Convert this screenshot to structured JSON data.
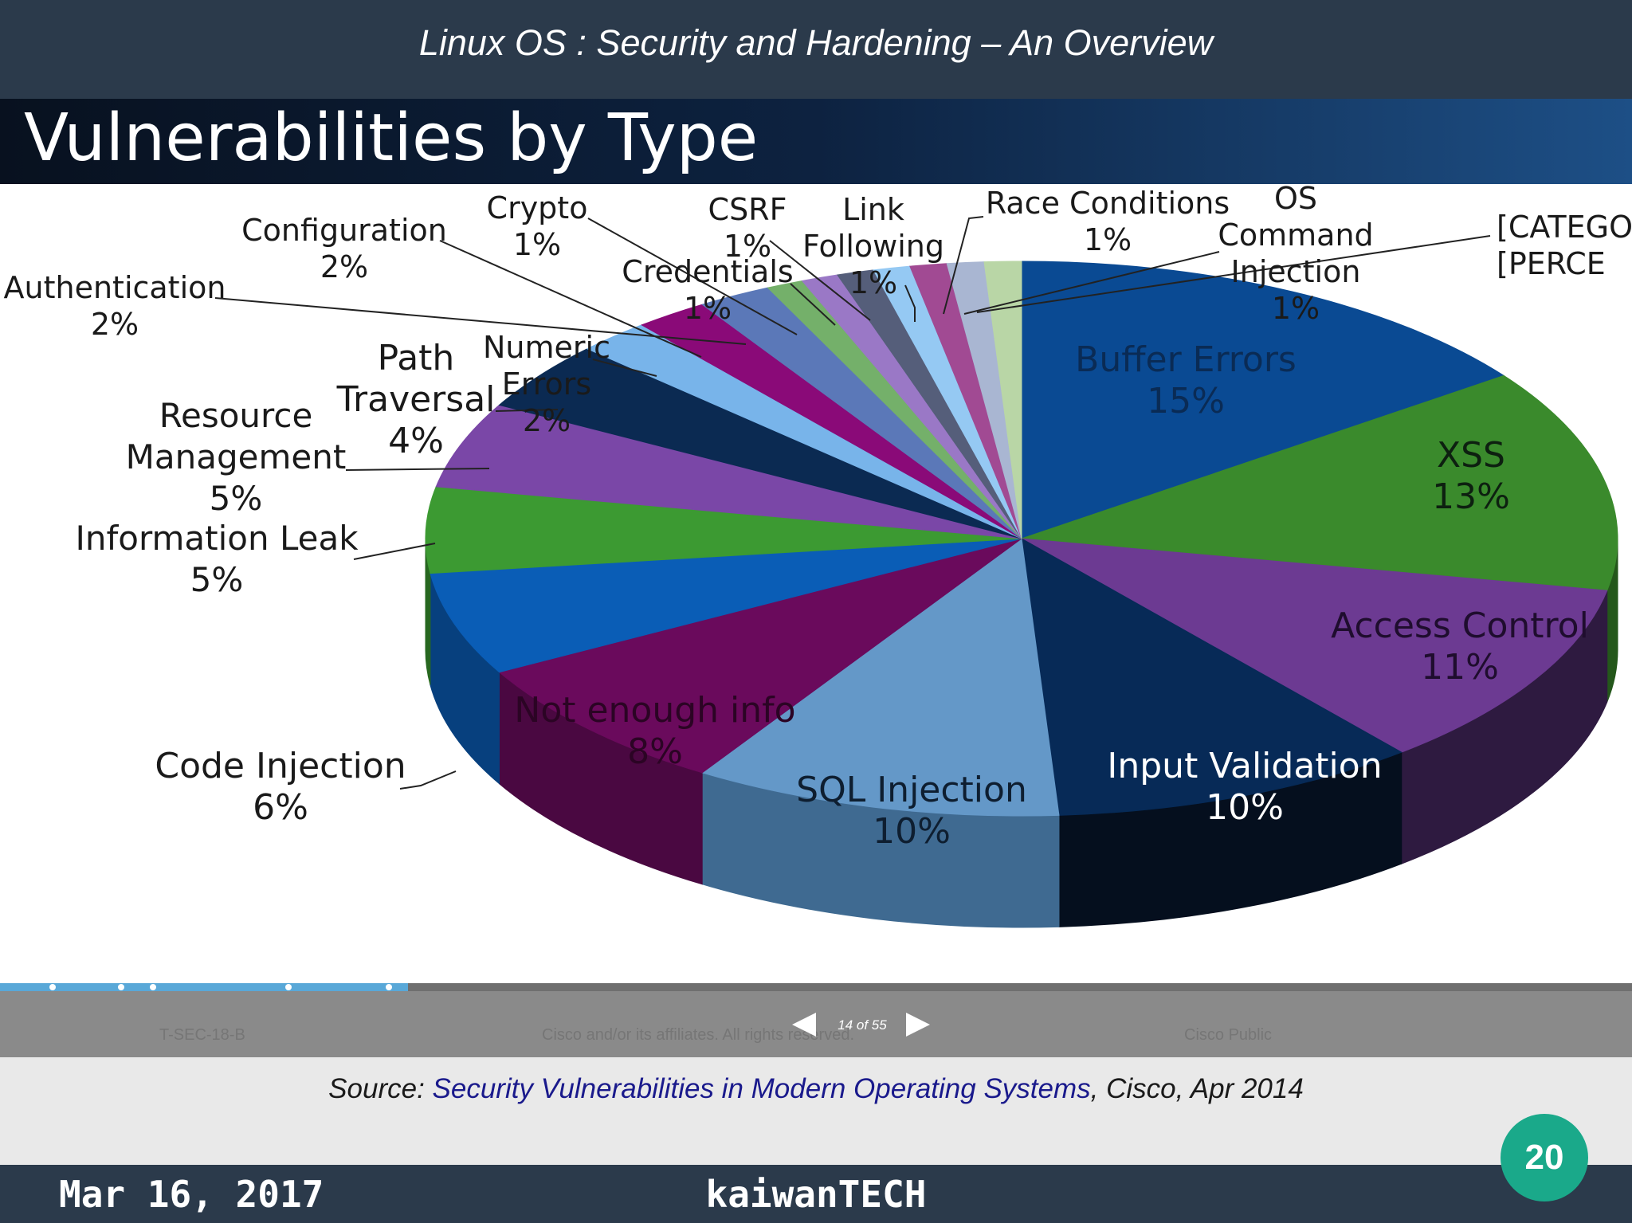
{
  "header": {
    "title": "Linux OS : Security and Hardening – An Overview"
  },
  "slide": {
    "title": "Vulnerabilities by Type",
    "footer_left": "T-SEC-18-B",
    "footer_center": "Cisco and/or its affiliates. All rights reserved.",
    "footer_right": "Cisco Public",
    "page_indicator": "14 of 55",
    "progress": 0.25
  },
  "chart_data": {
    "type": "pie",
    "title": "Vulnerabilities by Type",
    "unit": "%",
    "slices": [
      {
        "label": "Buffer Errors",
        "value": 15,
        "color": "#0a4a93",
        "side": "#072f5e"
      },
      {
        "label": "XSS",
        "value": 13,
        "color": "#3a8a2c",
        "side": "#24571b"
      },
      {
        "label": "Access Control",
        "value": 11,
        "color": "#6c3a92",
        "side": "#2e1a40"
      },
      {
        "label": "Input Validation",
        "value": 10,
        "color": "#072a57",
        "side": "#050f1e"
      },
      {
        "label": "SQL Injection",
        "value": 10,
        "color": "#6498c8",
        "side": "#3f6a91"
      },
      {
        "label": "Not enough info",
        "value": 8,
        "color": "#6a0a5c",
        "side": "#4a0841"
      },
      {
        "label": "Code Injection",
        "value": 6,
        "color": "#0a5db6",
        "side": "#07407e"
      },
      {
        "label": "Information Leak",
        "value": 5,
        "color": "#3c9a32",
        "side": "#276720"
      },
      {
        "label": "Resource Management",
        "value": 5,
        "color": "#7a47a7",
        "side": "#4f2d6d"
      },
      {
        "label": "Path Traversal",
        "value": 4,
        "color": "#0b2a52",
        "side": "#061a33"
      },
      {
        "label": "Numeric Errors",
        "value": 2,
        "color": "#78b4ea",
        "side": "#4d7ea9"
      },
      {
        "label": "Authentication",
        "value": 2,
        "color": "#8a0a78",
        "side": "#5a064e"
      },
      {
        "label": "Configuration",
        "value": 2,
        "color": "#5b78b8",
        "side": "#3c5079"
      },
      {
        "label": "Crypto",
        "value": 1,
        "color": "#74b06a",
        "side": "#4c7445"
      },
      {
        "label": "Credentials",
        "value": 1,
        "color": "#9a78c6",
        "side": "#654f82"
      },
      {
        "label": "CSRF",
        "value": 1,
        "color": "#555e7a",
        "side": "#373d50"
      },
      {
        "label": "Link Following",
        "value": 1,
        "color": "#95c9f3",
        "side": "#6184a0"
      },
      {
        "label": "Race Conditions",
        "value": 1,
        "color": "#a14a93",
        "side": "#6a3060"
      },
      {
        "label": "OS Command Injection",
        "value": 1,
        "color": "#a9b6d2",
        "side": "#6f788a"
      },
      {
        "label": "[CATEGORY NAME]",
        "value": 1,
        "color": "#b9d6a6",
        "side": "#7a8d6d"
      }
    ],
    "labels": [
      {
        "lines": [
          "Buffer Errors",
          "15%"
        ],
        "color": "#0a2b55"
      },
      {
        "lines": [
          "XSS",
          "13%"
        ],
        "color": "#0d2010"
      },
      {
        "lines": [
          "Access Control",
          "11%"
        ],
        "color": "#1f0d2e"
      },
      {
        "lines": [
          "Input Validation",
          "10%"
        ],
        "color": "#ffffff"
      },
      {
        "lines": [
          "SQL Injection",
          "10%"
        ],
        "color": "#0e1e30"
      },
      {
        "lines": [
          "Not enough info",
          "8%"
        ],
        "color": "#2b0424"
      },
      {
        "lines": [
          "Code Injection",
          "6%"
        ],
        "color": "#1a1a1a"
      },
      {
        "lines": [
          "Information Leak",
          "5%"
        ],
        "color": "#1a1a1a"
      },
      {
        "lines": [
          "Resource",
          "Management",
          "5%"
        ],
        "color": "#1a1a1a"
      },
      {
        "lines": [
          "Path",
          "Traversal",
          "4%"
        ],
        "color": "#1a1a1a"
      },
      {
        "lines": [
          "Numeric",
          "Errors",
          "2%"
        ],
        "color": "#1a1a1a"
      },
      {
        "lines": [
          "Authentication",
          "2%"
        ],
        "color": "#1a1a1a"
      },
      {
        "lines": [
          "Configuration",
          "2%"
        ],
        "color": "#1a1a1a"
      },
      {
        "lines": [
          "Crypto",
          "1%"
        ],
        "color": "#1a1a1a"
      },
      {
        "lines": [
          "Credentials",
          "1%"
        ],
        "color": "#1a1a1a"
      },
      {
        "lines": [
          "CSRF",
          "1%"
        ],
        "color": "#1a1a1a"
      },
      {
        "lines": [
          "Link",
          "Following",
          "1%"
        ],
        "color": "#1a1a1a"
      },
      {
        "lines": [
          "Race Conditions",
          "1%"
        ],
        "color": "#1a1a1a"
      },
      {
        "lines": [
          "OS",
          "Command",
          "Injection",
          "1%"
        ],
        "color": "#1a1a1a"
      },
      {
        "lines": [
          "[CATEGO",
          "[PERCE"
        ],
        "color": "#1a1a1a"
      }
    ]
  },
  "source": {
    "prefix": "Source: ",
    "link_text": "Security Vulnerabilities in Modern Operating Systems",
    "suffix": ", Cisco, Apr 2014"
  },
  "bottom_bar": {
    "date": "Mar 16, 2017",
    "brand": "kaiwanTECH"
  },
  "slide_number": "20"
}
